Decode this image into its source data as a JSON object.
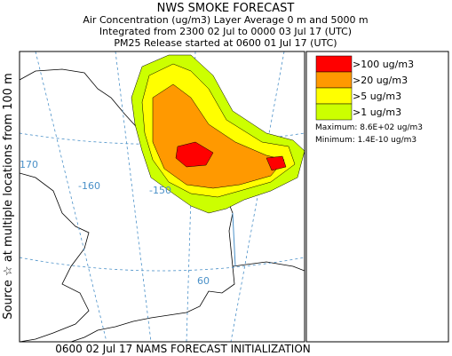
{
  "header": {
    "title": "NWS SMOKE FORECAST",
    "lines": [
      "Air Concentration (ug/m3) Layer Average    0 m and  5000 m",
      "Integrated from 2300 02 Jul to 0000 03 Jul 17 (UTC)",
      "PM25 Release started at 0600 01 Jul 17 (UTC)"
    ]
  },
  "side_label": "Source ☆ at multiple locations     from   100 m",
  "map": {
    "grid_labels": [
      "170",
      "-160",
      "-150",
      "60"
    ]
  },
  "legend": {
    "items": [
      {
        "label": ">100 ug/m3",
        "color": "#ff0000"
      },
      {
        "label": ">20 ug/m3",
        "color": "#ff9900"
      },
      {
        "label": ">5 ug/m3",
        "color": "#ffff00"
      },
      {
        "label": ">1 ug/m3",
        "color": "#ccff00"
      }
    ],
    "maximum": "Maximum: 8.6E+02 ug/m3",
    "minimum": "Minimum: 1.4E-10 ug/m3"
  },
  "footer": "0600 02 Jul 17 NAMS FORECAST INITIALIZATION"
}
